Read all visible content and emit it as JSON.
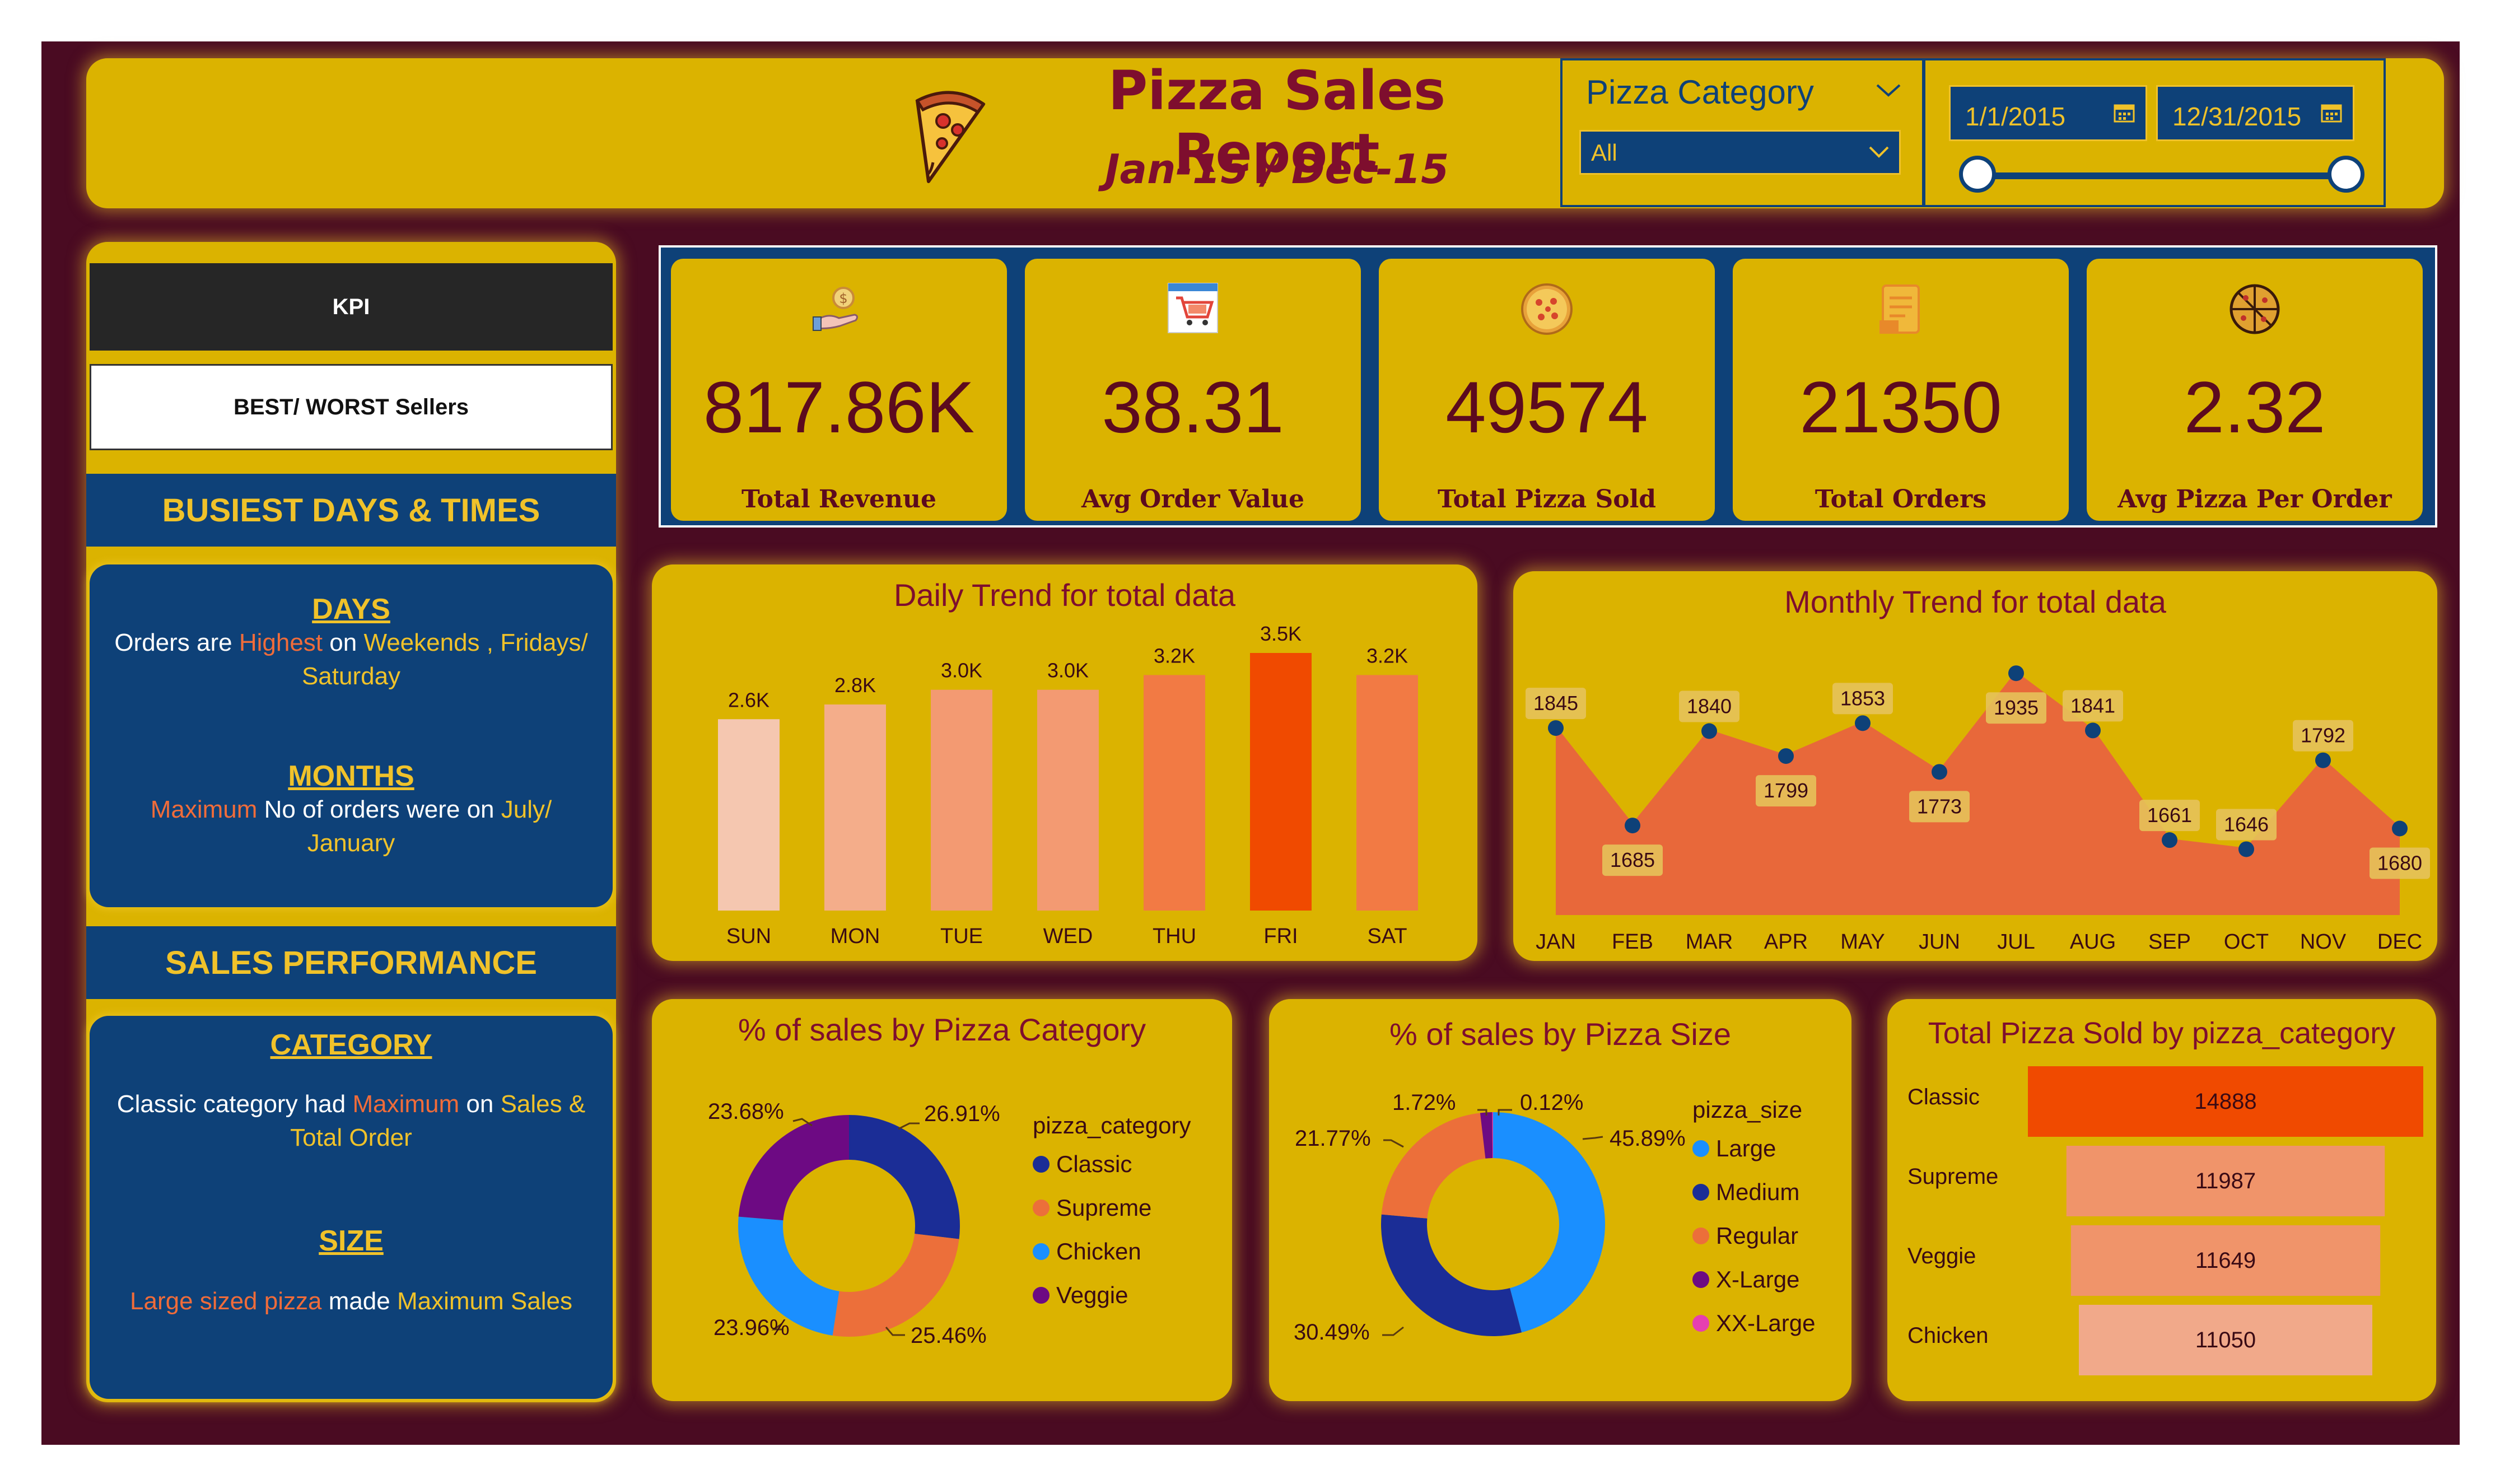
{
  "header": {
    "title": "Pizza Sales Report",
    "subtitle": "Jan-15 / Dec-15",
    "category_filter": {
      "label": "Pizza Category",
      "selected": "All"
    },
    "date_range": {
      "start": "1/1/2015",
      "end": "12/31/2015"
    }
  },
  "nav": {
    "kpi": "KPI",
    "sellers": "BEST/ WORST Sellers",
    "busiest_heading": "BUSIEST DAYS & TIMES",
    "sales_heading": "SALES PERFORMANCE"
  },
  "insights": {
    "days_title": "DAYS",
    "days_1": "Orders are",
    "days_2": "Highest",
    "days_3": "on",
    "days_4": "Weekends , Fridays/ Saturday",
    "months_title": "MONTHS",
    "months_1": "Maximum",
    "months_2": "No of orders were on",
    "months_3": "July/ January",
    "category_title": "CATEGORY",
    "category_1": "Classic category had",
    "category_2": "Maximum",
    "category_3": "on",
    "category_4": "Sales & Total Order",
    "size_title": "SIZE",
    "size_1": "Large sized pizza",
    "size_2": "made",
    "size_3": "Maximum Sales"
  },
  "kpis": [
    {
      "value": "817.86K",
      "label": "Total Revenue",
      "icon": "money-hand-icon"
    },
    {
      "value": "38.31",
      "label": "Avg Order Value",
      "icon": "shopping-cart-icon"
    },
    {
      "value": "49574",
      "label": "Total Pizza Sold",
      "icon": "pizza-icon"
    },
    {
      "value": "21350",
      "label": "Total Orders",
      "icon": "order-receipt-icon"
    },
    {
      "value": "2.32",
      "label": "Avg Pizza Per Order",
      "icon": "pizza-slices-icon"
    }
  ],
  "colors": {
    "frame": "#4a0b22",
    "card": "#dbb300",
    "panel_blue": "#0e4178",
    "title_maroon": "#7e0e2e",
    "orange": "#f06c3a",
    "highlight": "#f04a00"
  },
  "chart_data": [
    {
      "type": "bar",
      "title": "Daily Trend for total data",
      "categories": [
        "SUN",
        "MON",
        "TUE",
        "WED",
        "THU",
        "FRI",
        "SAT"
      ],
      "values": [
        2.6,
        2.8,
        3.0,
        3.0,
        3.2,
        3.5,
        3.2
      ],
      "labels": [
        "2.6K",
        "2.8K",
        "3.0K",
        "3.0K",
        "3.2K",
        "3.5K",
        "3.2K"
      ],
      "unit": "thousand orders",
      "colors": [
        "#f5c7b0",
        "#f4ad8a",
        "#f39a72",
        "#f39a72",
        "#f27a44",
        "#f04a00",
        "#f27a44"
      ],
      "grid": false
    },
    {
      "type": "area",
      "title": "Monthly Trend for total data",
      "categories": [
        "JAN",
        "FEB",
        "MAR",
        "APR",
        "MAY",
        "JUN",
        "JUL",
        "AUG",
        "SEP",
        "OCT",
        "NOV",
        "DEC"
      ],
      "values": [
        1845,
        1685,
        1840,
        1799,
        1853,
        1773,
        1935,
        1841,
        1661,
        1646,
        1792,
        1680
      ],
      "ylim": [
        1560,
        1960
      ],
      "area_color": "#e8683a",
      "marker_color": "#0e4178",
      "grid": false
    },
    {
      "type": "pie",
      "title": "% of sales by Pizza Category",
      "legend_title": "pizza_category",
      "labels": [
        "Classic",
        "Supreme",
        "Chicken",
        "Veggie"
      ],
      "values": [
        26.91,
        25.46,
        23.96,
        23.68
      ],
      "value_labels": [
        "26.91%",
        "25.46%",
        "23.96%",
        "23.68%"
      ],
      "colors": [
        "#1b2d96",
        "#ec6f3a",
        "#1a8fff",
        "#6d0a83"
      ],
      "donut": true,
      "legend_position": "right"
    },
    {
      "type": "pie",
      "title": "% of sales by Pizza Size",
      "legend_title": "pizza_size",
      "labels": [
        "Large",
        "Medium",
        "Regular",
        "X-Large",
        "XX-Large"
      ],
      "values": [
        45.89,
        30.49,
        21.77,
        1.72,
        0.12
      ],
      "value_labels": [
        "45.89%",
        "30.49%",
        "21.77%",
        "1.72%",
        "0.12%"
      ],
      "colors": [
        "#1a8fff",
        "#1b2d96",
        "#ec6f3a",
        "#6d0a83",
        "#e63fb0"
      ],
      "donut": true,
      "legend_position": "right"
    },
    {
      "type": "bar",
      "orientation": "horizontal-funnel",
      "title": "Total Pizza Sold by pizza_category",
      "categories": [
        "Classic",
        "Supreme",
        "Veggie",
        "Chicken"
      ],
      "values": [
        14888,
        11987,
        11649,
        11050
      ],
      "colors": [
        "#f04a00",
        "#f0946a",
        "#f0946a",
        "#f1a98a"
      ]
    }
  ]
}
